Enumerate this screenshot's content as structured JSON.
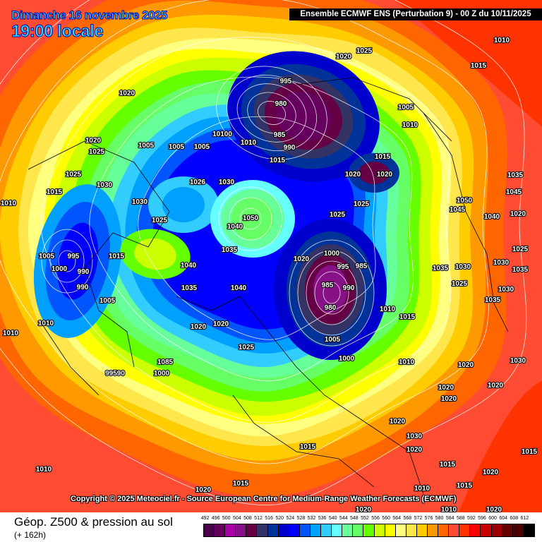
{
  "header": {
    "date": "Dimanche 16 novembre 2025",
    "time": "19:00 locale",
    "run": "Ensemble ECMWF ENS  (Perturbation 9)  -  00 Z du 10/11/2025"
  },
  "copyright": "Copyright © 2025 Meteociel.fr - Source European Centre for Medium-Range Weather Forecasts (ECMWF)",
  "footer": {
    "title": "Géop. Z500 & pression au sol",
    "subtitle": "(+ 162h)"
  },
  "legend": {
    "values": [
      "492",
      "496",
      "500",
      "504",
      "508",
      "512",
      "516",
      "520",
      "524",
      "528",
      "532",
      "536",
      "540",
      "544",
      "548",
      "552",
      "556",
      "560",
      "564",
      "568",
      "572",
      "576",
      "580",
      "584",
      "588",
      "592",
      "596",
      "600",
      "604",
      "608",
      "612"
    ],
    "colors": [
      "#4a0048",
      "#66005e",
      "#a600a6",
      "#881188",
      "#660044",
      "#333366",
      "#003399",
      "#0000cc",
      "#0000ff",
      "#0055ff",
      "#00a0ff",
      "#33ccff",
      "#66ffff",
      "#66ff99",
      "#66ff66",
      "#66ff00",
      "#ccff00",
      "#ffff00",
      "#ffff80",
      "#ffe64d",
      "#ffcc00",
      "#ff9900",
      "#ff6600",
      "#ff4c33",
      "#ff3300",
      "#ff0000",
      "#cc0000",
      "#990000",
      "#660000",
      "#4d0000",
      "#000000"
    ]
  },
  "pressure_labels": [
    "1020",
    "1025",
    "1010",
    "1015",
    "1020",
    "995",
    "980",
    "1005",
    "1010",
    "1020",
    "1025",
    "1005",
    "1005",
    "1005",
    "10100",
    "1010",
    "985",
    "990",
    "1015",
    "1015",
    "1020",
    "1020",
    "1025",
    "1030",
    "1015",
    "1010",
    "1030",
    "1026",
    "1030",
    "1025",
    "1025",
    "1025",
    "1050",
    "1040",
    "1045",
    "1050",
    "1040",
    "1020",
    "1035",
    "1045",
    "1005",
    "995",
    "1000",
    "990",
    "1015",
    "1020",
    "1000",
    "995",
    "985",
    "1040",
    "1035",
    "990",
    "1035",
    "1040",
    "985",
    "990",
    "980",
    "1005",
    "1010",
    "1010",
    "1010",
    "1015",
    "1020",
    "1020",
    "1025",
    "1005",
    "1000",
    "1010",
    "1020",
    "1085",
    "99590",
    "1000",
    "1020",
    "1020",
    "1020",
    "1030",
    "1030",
    "1035",
    "1035",
    "1030",
    "1025",
    "1035",
    "1030",
    "1025",
    "1020",
    "1030",
    "1020",
    "1015",
    "1010",
    "1015",
    "1015",
    "1020",
    "1015",
    "1010",
    "1020",
    "1020",
    "1015",
    "1020",
    "1010"
  ]
}
